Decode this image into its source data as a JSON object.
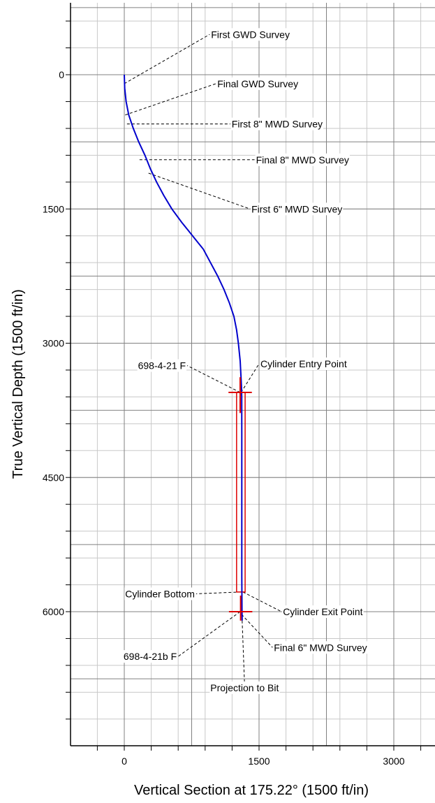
{
  "chart_data": {
    "type": "line",
    "xlabel": "Vertical Section at 175.22° (1500 ft/in)",
    "ylabel": "True Vertical Depth (1500 ft/in)",
    "xlim": [
      -600,
      3500
    ],
    "ylim": [
      -800,
      7400
    ],
    "y_inverted": true,
    "x_ticks": [
      0,
      1500,
      3000
    ],
    "y_ticks": [
      0,
      1500,
      3000,
      4500,
      6000
    ],
    "grid": true,
    "grid_major_step": 750,
    "grid_minor_step": 300,
    "series": [
      {
        "color": "#0000cc",
        "points": [
          [
            0,
            0
          ],
          [
            5,
            150
          ],
          [
            20,
            300
          ],
          [
            50,
            450
          ],
          [
            100,
            600
          ],
          [
            160,
            750
          ],
          [
            230,
            900
          ],
          [
            290,
            1050
          ],
          [
            360,
            1200
          ],
          [
            440,
            1350
          ],
          [
            530,
            1500
          ],
          [
            640,
            1650
          ],
          [
            720,
            1750
          ],
          [
            800,
            1850
          ],
          [
            880,
            1950
          ],
          [
            960,
            2100
          ],
          [
            1040,
            2250
          ],
          [
            1110,
            2400
          ],
          [
            1170,
            2550
          ],
          [
            1220,
            2700
          ],
          [
            1250,
            2850
          ],
          [
            1270,
            3000
          ],
          [
            1290,
            3200
          ],
          [
            1300,
            3400
          ],
          [
            1305,
            3500
          ],
          [
            1307,
            3600
          ],
          [
            1308,
            4000
          ],
          [
            1308,
            5000
          ],
          [
            1308,
            5600
          ],
          [
            1310,
            6000
          ],
          [
            1312,
            6100
          ]
        ]
      }
    ],
    "cylinder": {
      "color": "#dd0000",
      "x_left": 1250,
      "x_right": 1345,
      "top": 3550,
      "bottom": 5780
    },
    "target_markers": [
      {
        "color": "#dd0000",
        "x": 1290,
        "y": 3550,
        "half_width": 130,
        "up": 170,
        "down": 230
      },
      {
        "color": "#dd0000",
        "x": 1295,
        "y": 6000,
        "half_width": 130,
        "up": 180,
        "down": 100
      }
    ],
    "annotations": [
      {
        "label": "First GWD Survey",
        "point": [
          0,
          100
        ],
        "label_pos": [
          950,
          -450
        ]
      },
      {
        "label": "Final GWD Survey",
        "point": [
          10,
          450
        ],
        "label_pos": [
          1020,
          100
        ]
      },
      {
        "label": "First 8\" MWD Survey",
        "point": [
          30,
          550
        ],
        "label_pos": [
          1180,
          550
        ]
      },
      {
        "label": "Final 8\" MWD Survey",
        "point": [
          170,
          950
        ],
        "label_pos": [
          1450,
          950
        ]
      },
      {
        "label": "First 6\" MWD Survey",
        "point": [
          270,
          1100
        ],
        "label_pos": [
          1400,
          1500
        ]
      },
      {
        "label": "698-4-21 F",
        "point": [
          1290,
          3550
        ],
        "label_pos": [
          700,
          3250
        ]
      },
      {
        "label": "Cylinder Entry Point",
        "point": [
          1300,
          3550
        ],
        "label_pos": [
          1500,
          3230
        ]
      },
      {
        "label": "Cylinder Bottom",
        "point": [
          1300,
          5780
        ],
        "label_pos": [
          800,
          5800
        ]
      },
      {
        "label": "Cylinder Exit Point",
        "point": [
          1320,
          5780
        ],
        "label_pos": [
          1750,
          6000
        ]
      },
      {
        "label": "698-4-21b F",
        "point": [
          1290,
          6000
        ],
        "label_pos": [
          600,
          6500
        ]
      },
      {
        "label": "Final 6\" MWD Survey",
        "point": [
          1305,
          6030
        ],
        "label_pos": [
          1650,
          6400
        ]
      },
      {
        "label": "Projection to Bit",
        "point": [
          1312,
          6100
        ],
        "label_pos": [
          1340,
          6850
        ]
      }
    ]
  }
}
